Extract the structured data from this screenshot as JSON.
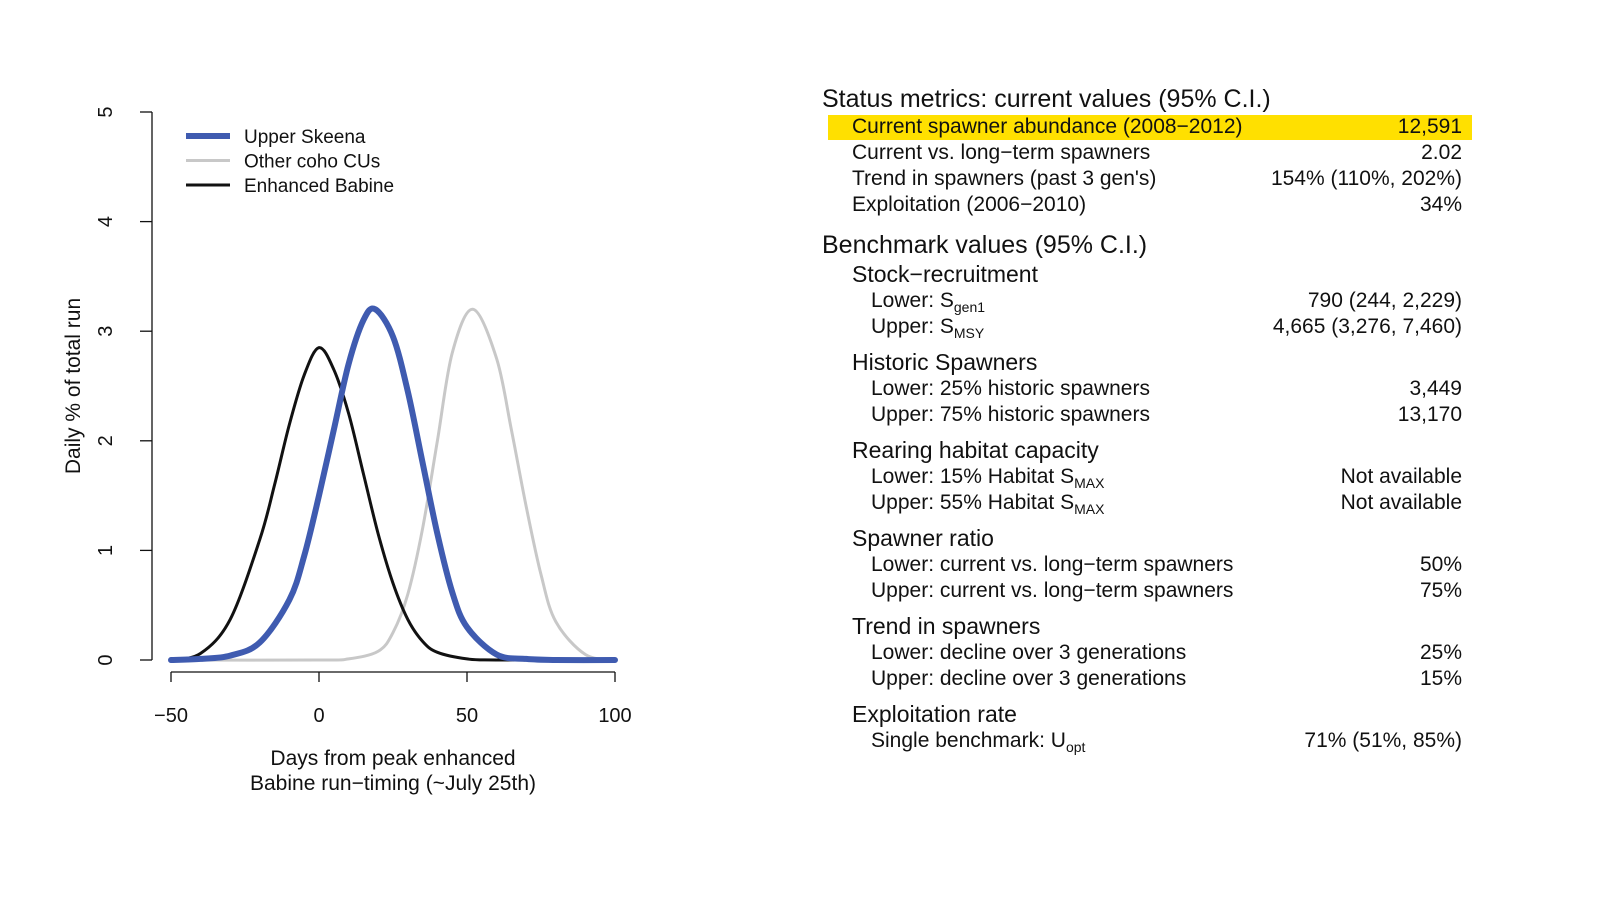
{
  "colors": {
    "upper_skeena": "#3f5bb0",
    "other_coho": "#c8c8c8",
    "enhanced_babine": "#111111",
    "highlight": "#ffe000"
  },
  "chart_data": {
    "type": "line",
    "xlabel_lines": [
      "Days from peak enhanced",
      "Babine run−timing (~July 25th)"
    ],
    "ylabel": "Daily % of total run",
    "xlim": [
      -50,
      100
    ],
    "ylim": [
      0,
      5
    ],
    "x_ticks": [
      -50,
      0,
      50,
      100
    ],
    "x_tick_labels": [
      "−50",
      "0",
      "50",
      "100"
    ],
    "y_ticks": [
      0,
      1,
      2,
      3,
      4,
      5
    ],
    "y_tick_labels": [
      "0",
      "1",
      "2",
      "3",
      "4",
      "5"
    ],
    "grid": false,
    "legend_position": "top-left",
    "series": [
      {
        "name": "Upper Skeena",
        "color": "#3f5bb0",
        "style": "thick",
        "x": [
          -50,
          -40,
          -30,
          -20,
          -10,
          -5,
          0,
          5,
          10,
          15,
          19,
          25,
          30,
          35,
          40,
          45,
          50,
          60,
          70,
          80,
          100
        ],
        "y": [
          0,
          0.01,
          0.04,
          0.16,
          0.55,
          0.95,
          1.5,
          2.1,
          2.7,
          3.1,
          3.2,
          2.95,
          2.45,
          1.8,
          1.15,
          0.62,
          0.3,
          0.05,
          0.01,
          0,
          0
        ]
      },
      {
        "name": "Other coho CUs",
        "color": "#c8c8c8",
        "style": "normal",
        "x": [
          -50,
          0,
          10,
          20,
          25,
          30,
          35,
          40,
          45,
          52,
          60,
          65,
          70,
          75,
          80,
          90,
          100
        ],
        "y": [
          0,
          0,
          0.01,
          0.08,
          0.25,
          0.6,
          1.2,
          2.0,
          2.8,
          3.2,
          2.75,
          2.1,
          1.4,
          0.78,
          0.35,
          0.05,
          0
        ]
      },
      {
        "name": "Enhanced Babine",
        "color": "#111111",
        "style": "normal",
        "x": [
          -50,
          -40,
          -30,
          -20,
          -15,
          -10,
          -5,
          0,
          5,
          10,
          15,
          20,
          25,
          30,
          35,
          40,
          50,
          60,
          100
        ],
        "y": [
          0,
          0.06,
          0.37,
          1.1,
          1.6,
          2.15,
          2.6,
          2.85,
          2.65,
          2.25,
          1.7,
          1.15,
          0.7,
          0.37,
          0.17,
          0.07,
          0.01,
          0,
          0
        ]
      }
    ]
  },
  "status": {
    "title": "Status metrics: current values (95% C.I.)",
    "rows": [
      {
        "label": "Current spawner abundance (2008−2012)",
        "value": "12,591"
      },
      {
        "label": "Current vs. long−term spawners",
        "value": "2.02"
      },
      {
        "label": "Trend in spawners (past 3 gen's)",
        "value": "154% (110%, 202%)"
      },
      {
        "label": "Exploitation (2006−2010)",
        "value": "34%"
      }
    ]
  },
  "benchmark": {
    "title": "Benchmark values (95% C.I.)",
    "stock_recruitment": {
      "heading": "Stock−recruitment",
      "lower_label": "Lower: S",
      "lower_sub": "gen1",
      "lower_value": "790 (244, 2,229)",
      "upper_label": "Upper: S",
      "upper_sub": "MSY",
      "upper_value": "4,665 (3,276, 7,460)"
    },
    "historic": {
      "heading": "Historic Spawners",
      "lower_label": "Lower: 25% historic spawners",
      "lower_value": "3,449",
      "upper_label": "Upper: 75% historic spawners",
      "upper_value": "13,170"
    },
    "rearing": {
      "heading": "Rearing habitat capacity",
      "lower_label": "Lower: 15% Habitat S",
      "lower_sub": "MAX",
      "lower_value": "Not available",
      "upper_label": "Upper: 55% Habitat S",
      "upper_sub": "MAX",
      "upper_value": "Not available"
    },
    "spawner_ratio": {
      "heading": "Spawner ratio",
      "lower_label": "Lower: current vs. long−term spawners",
      "lower_value": "50%",
      "upper_label": "Upper: current vs. long−term spawners",
      "upper_value": "75%"
    },
    "trend": {
      "heading": "Trend in spawners",
      "lower_label": "Lower: decline over 3 generations",
      "lower_value": "25%",
      "upper_label": "Upper: decline over 3 generations",
      "upper_value": "15%"
    },
    "exploitation": {
      "heading": "Exploitation rate",
      "single_label": "Single benchmark: U",
      "single_sub": "opt",
      "single_value": "71% (51%, 85%)"
    }
  }
}
